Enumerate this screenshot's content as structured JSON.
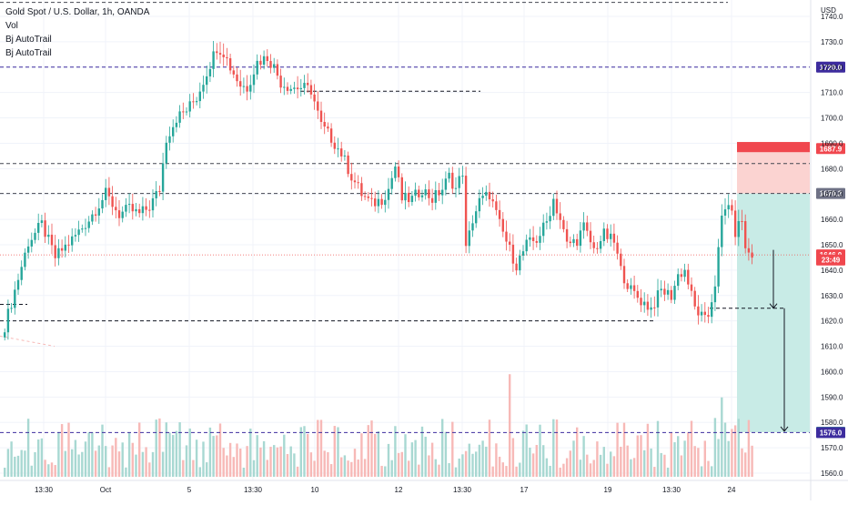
{
  "legend": {
    "symbol": "Gold Spot / U.S. Dollar, 1h, OANDA",
    "indicators": [
      "Vol",
      "Bj AutoTrail",
      "Bj AutoTrail"
    ]
  },
  "price_axis": {
    "currency_label": "USD",
    "ticks": [
      1740,
      1730,
      1720,
      1710,
      1700,
      1690,
      1680,
      1670,
      1660,
      1650,
      1640,
      1630,
      1620,
      1610,
      1600,
      1590,
      1580,
      1570,
      1560
    ]
  },
  "time_axis": {
    "labels": [
      "13:30",
      "Oct",
      "5",
      "13:30",
      "10",
      "12",
      "13:30",
      "17",
      "19",
      "13:30",
      "24"
    ]
  },
  "price_tags": [
    {
      "text": "1720.0",
      "price": 1720.0,
      "color": "#3d2c9e"
    },
    {
      "text": "1687.9",
      "price": 1687.9,
      "color": "#f0474e"
    },
    {
      "text": "1670.2",
      "price": 1670.2,
      "color": "#6e7185"
    },
    {
      "text": "1646.0",
      "price": 1646.0,
      "color": "#f0474e"
    },
    {
      "text": "23:49",
      "price": 1644.0,
      "color": "#f0474e"
    },
    {
      "text": "1576.1",
      "price": 1576.1,
      "color": "#089981"
    },
    {
      "text": "1576.0",
      "price": 1576.0,
      "color": "#3d2c9e"
    }
  ],
  "horizontal_levels": [
    {
      "price": 1720.0,
      "color": "#3d2c9e",
      "style": "dashed"
    },
    {
      "price": 1682.0,
      "color": "#434651",
      "style": "dashed"
    },
    {
      "price": 1670.2,
      "color": "#434651",
      "style": "dashed"
    },
    {
      "price": 1576.0,
      "color": "#3d2c9e",
      "style": "dashed"
    }
  ],
  "colors": {
    "up": "#26a69a",
    "down": "#ef5350",
    "volume_up": "#a8d8d2",
    "volume_down": "#f7b9b7",
    "target_zone": "#c8ebe6",
    "stop_zone": "#fbd3d1",
    "stop_bar": "#f0474e",
    "grid": "#f0f3fa"
  },
  "chart_data": {
    "type": "candlestick",
    "instrument": "Gold Spot / U.S. Dollar",
    "timeframe": "1h",
    "source": "OANDA",
    "ylim": [
      1557,
      1750
    ],
    "x_tick_labels": [
      "13:30",
      "Oct",
      "5",
      "13:30",
      "10",
      "12",
      "13:30",
      "17",
      "19",
      "13:30",
      "24"
    ],
    "y_tick_labels": [
      1740,
      1730,
      1720,
      1710,
      1700,
      1690,
      1680,
      1670,
      1660,
      1650,
      1640,
      1630,
      1620,
      1610,
      1600,
      1590,
      1580,
      1570,
      1560
    ],
    "close_path": [
      [
        0,
        1618
      ],
      [
        3,
        1632
      ],
      [
        7,
        1651
      ],
      [
        11,
        1658
      ],
      [
        15,
        1645
      ],
      [
        17,
        1648
      ],
      [
        20,
        1652
      ],
      [
        25,
        1660
      ],
      [
        30,
        1670
      ],
      [
        34,
        1662
      ],
      [
        37,
        1664
      ],
      [
        40,
        1662
      ],
      [
        43,
        1665
      ],
      [
        46,
        1672
      ],
      [
        48,
        1692
      ],
      [
        51,
        1700
      ],
      [
        54,
        1703
      ],
      [
        57,
        1708
      ],
      [
        60,
        1718
      ],
      [
        63,
        1728
      ],
      [
        65,
        1726
      ],
      [
        67,
        1720
      ],
      [
        70,
        1713
      ],
      [
        72,
        1712
      ],
      [
        75,
        1722
      ],
      [
        78,
        1724
      ],
      [
        80,
        1720
      ],
      [
        82,
        1714
      ],
      [
        85,
        1712
      ],
      [
        88,
        1712
      ],
      [
        91,
        1711
      ],
      [
        94,
        1697
      ],
      [
        97,
        1692
      ],
      [
        100,
        1686
      ],
      [
        103,
        1677
      ],
      [
        106,
        1670
      ],
      [
        109,
        1666
      ],
      [
        112,
        1668
      ],
      [
        114,
        1672
      ],
      [
        116,
        1681
      ],
      [
        118,
        1668
      ],
      [
        121,
        1668
      ],
      [
        124,
        1672
      ],
      [
        127,
        1668
      ],
      [
        130,
        1672
      ],
      [
        132,
        1677
      ],
      [
        134,
        1672
      ],
      [
        136,
        1679
      ],
      [
        137,
        1648
      ],
      [
        139,
        1660
      ],
      [
        141,
        1667
      ],
      [
        144,
        1670
      ],
      [
        147,
        1658
      ],
      [
        150,
        1648
      ],
      [
        152,
        1642
      ],
      [
        155,
        1650
      ],
      [
        158,
        1652
      ],
      [
        161,
        1659
      ],
      [
        163,
        1668
      ],
      [
        165,
        1660
      ],
      [
        167,
        1650
      ],
      [
        170,
        1652
      ],
      [
        172,
        1657
      ],
      [
        175,
        1648
      ],
      [
        178,
        1654
      ],
      [
        181,
        1651
      ],
      [
        183,
        1640
      ],
      [
        186,
        1632
      ],
      [
        189,
        1628
      ],
      [
        192,
        1625
      ],
      [
        195,
        1632
      ],
      [
        198,
        1630
      ],
      [
        200,
        1638
      ],
      [
        202,
        1640
      ],
      [
        205,
        1625
      ],
      [
        208,
        1620
      ],
      [
        209,
        1622
      ],
      [
        211,
        1635
      ],
      [
        213,
        1660
      ],
      [
        215,
        1667
      ],
      [
        217,
        1655
      ],
      [
        219,
        1660
      ],
      [
        220,
        1648
      ],
      [
        222,
        1646
      ]
    ],
    "volume": "per-bar volume histogram in lower pane (values not labeled)",
    "horizontal_lines": [
      1720.0,
      1682.0,
      1670.2,
      1625.0,
      1620.0,
      1576.0
    ],
    "position_tool": {
      "type": "long",
      "entry": 1670.2,
      "stop_loss": 1687.9,
      "take_profit": 1576.1
    },
    "last_price": 1646.0,
    "countdown": "23:49"
  }
}
